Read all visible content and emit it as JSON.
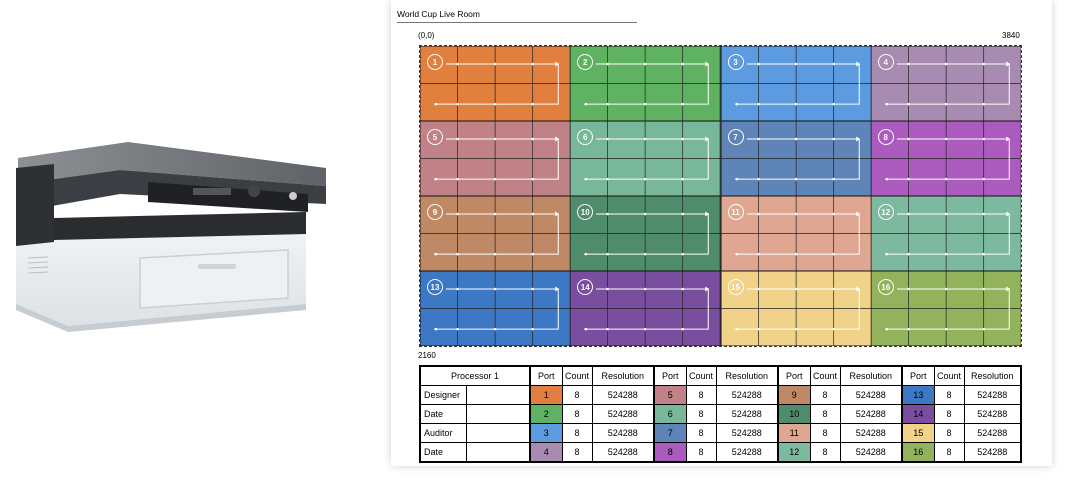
{
  "sheet": {
    "title": "World Cup Live Room"
  },
  "wall": {
    "origin_label": "(0,0)",
    "width_label": "3840",
    "height_label": "2160"
  },
  "regions": [
    {
      "n": "1",
      "color": "#e07f3e"
    },
    {
      "n": "2",
      "color": "#5fb262"
    },
    {
      "n": "3",
      "color": "#5c9be0"
    },
    {
      "n": "4",
      "color": "#a78bb0"
    },
    {
      "n": "5",
      "color": "#c18287"
    },
    {
      "n": "6",
      "color": "#78b79a"
    },
    {
      "n": "7",
      "color": "#5e84b8"
    },
    {
      "n": "8",
      "color": "#ab5bbd"
    },
    {
      "n": "9",
      "color": "#c08966"
    },
    {
      "n": "10",
      "color": "#4f8c6b"
    },
    {
      "n": "11",
      "color": "#dfa791"
    },
    {
      "n": "12",
      "color": "#7cb99f"
    },
    {
      "n": "13",
      "color": "#3d78c4"
    },
    {
      "n": "14",
      "color": "#7a4e9e"
    },
    {
      "n": "15",
      "color": "#f0d289"
    },
    {
      "n": "16",
      "color": "#92b35c"
    }
  ],
  "table": {
    "processor_header": "Processor 1",
    "col_headers": {
      "port": "Port",
      "count": "Count",
      "resolution": "Resolution"
    },
    "rows": [
      {
        "label": "Designer",
        "cells": [
          {
            "port": "1",
            "count": "8",
            "res": "524288"
          },
          {
            "port": "5",
            "count": "8",
            "res": "524288"
          },
          {
            "port": "9",
            "count": "8",
            "res": "524288"
          },
          {
            "port": "13",
            "count": "8",
            "res": "524288"
          }
        ]
      },
      {
        "label": "Date",
        "cells": [
          {
            "port": "2",
            "count": "8",
            "res": "524288"
          },
          {
            "port": "6",
            "count": "8",
            "res": "524288"
          },
          {
            "port": "10",
            "count": "8",
            "res": "524288"
          },
          {
            "port": "14",
            "count": "8",
            "res": "524288"
          }
        ]
      },
      {
        "label": "Auditor",
        "cells": [
          {
            "port": "3",
            "count": "8",
            "res": "524288"
          },
          {
            "port": "7",
            "count": "8",
            "res": "524288"
          },
          {
            "port": "11",
            "count": "8",
            "res": "524288"
          },
          {
            "port": "15",
            "count": "8",
            "res": "524288"
          }
        ]
      },
      {
        "label": "Date",
        "cells": [
          {
            "port": "4",
            "count": "8",
            "res": "524288"
          },
          {
            "port": "8",
            "count": "8",
            "res": "524288"
          },
          {
            "port": "12",
            "count": "8",
            "res": "524288"
          },
          {
            "port": "16",
            "count": "8",
            "res": "524288"
          }
        ]
      }
    ]
  }
}
